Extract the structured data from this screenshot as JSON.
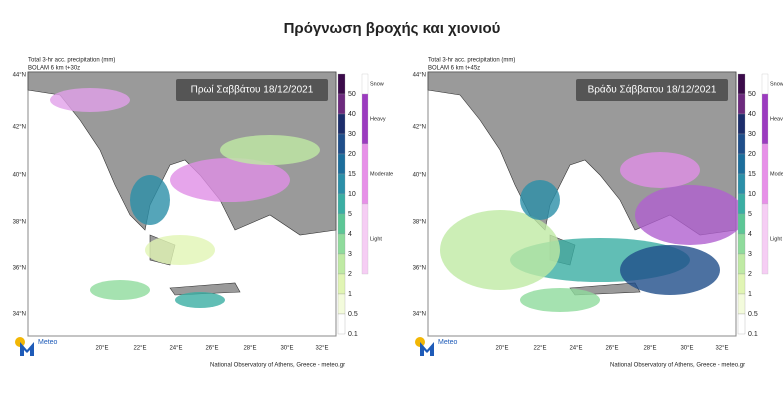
{
  "title": "Πρόγνωση βροχής και χιονιού",
  "panels": [
    {
      "header": "Total 3-hr acc. precipitation (mm)",
      "model": "BOLAM 6 km t+30z",
      "label": "Πρωί Σαββάτου 18/12/2021",
      "lat_labels": [
        "44°N",
        "42°N",
        "40°N",
        "38°N",
        "36°N",
        "34°N"
      ],
      "lon_labels": [
        "20°E",
        "22°E",
        "24°E",
        "26°E",
        "28°E",
        "30°E",
        "32°E"
      ],
      "levels": [
        "50",
        "40",
        "30",
        "20",
        "15",
        "10",
        "5",
        "4",
        "3",
        "2",
        "1",
        "0.5",
        "0.1"
      ],
      "intensity": [
        "Snow",
        "Heavy",
        "Moderate",
        "Light"
      ],
      "logo": "Meteo",
      "footer": "National Observatory of Athens, Greece - meteo.gr"
    },
    {
      "header": "Total 3-hr acc. precipitation (mm)",
      "model": "BOLAM 6 km t+45z",
      "label": "Βράδυ Σάββατου 18/12/2021",
      "lat_labels": [
        "44°N",
        "42°N",
        "40°N",
        "38°N",
        "36°N",
        "34°N"
      ],
      "lon_labels": [
        "20°E",
        "22°E",
        "24°E",
        "26°E",
        "28°E",
        "30°E",
        "32°E"
      ],
      "levels": [
        "50",
        "40",
        "30",
        "20",
        "15",
        "10",
        "5",
        "4",
        "3",
        "2",
        "1",
        "0.5",
        "0.1"
      ],
      "intensity": [
        "Snow",
        "Heavy",
        "Moderate",
        "Light"
      ],
      "logo": "Meteo",
      "footer": "National Observatory of Athens, Greece - meteo.gr"
    }
  ]
}
